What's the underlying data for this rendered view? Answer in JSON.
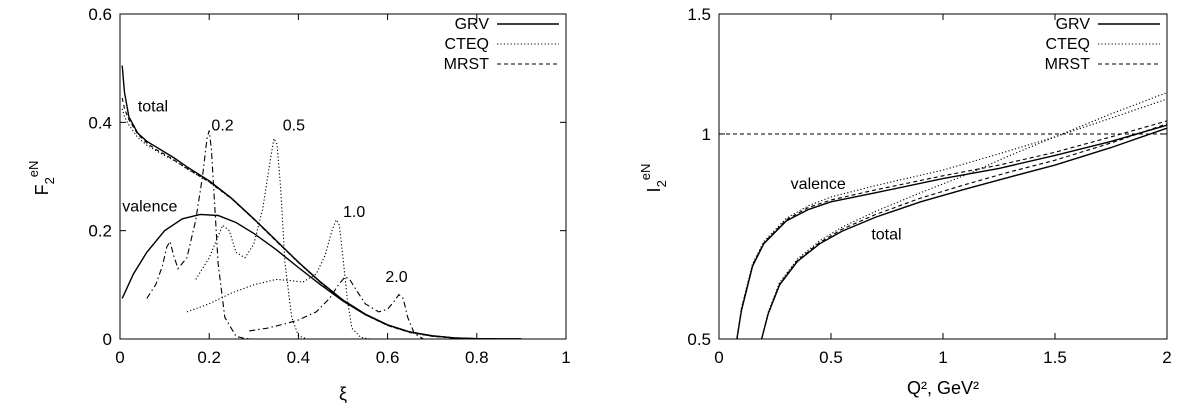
{
  "chart_data": [
    {
      "type": "line",
      "xlabel": "ξ",
      "ylabel": {
        "base": "F",
        "sub": "2",
        "sup": "eN"
      },
      "xlim": [
        0,
        1
      ],
      "ylim": [
        0,
        0.6
      ],
      "xticks": [
        "0",
        "0.2",
        "0.4",
        "0.6",
        "0.8",
        "1"
      ],
      "yticks": [
        "0",
        "0.2",
        "0.4",
        "0.6"
      ],
      "legend": {
        "position": "top-right",
        "entries": [
          "GRV",
          "CTEQ",
          "MRST"
        ]
      },
      "annotations": [
        {
          "text": "total",
          "x": 0.04,
          "y": 0.42
        },
        {
          "text": "valence",
          "x": 0.005,
          "y": 0.235
        },
        {
          "text": "0.2",
          "x": 0.205,
          "y": 0.385
        },
        {
          "text": "0.5",
          "x": 0.365,
          "y": 0.385
        },
        {
          "text": "1.0",
          "x": 0.5,
          "y": 0.225
        },
        {
          "text": "2.0",
          "x": 0.595,
          "y": 0.105
        }
      ],
      "series": [
        {
          "name": "GRV",
          "style": "solid",
          "x": [
            0.005,
            0.01,
            0.02,
            0.04,
            0.06,
            0.08,
            0.1,
            0.12,
            0.15,
            0.2,
            0.25,
            0.3,
            0.35,
            0.4,
            0.45,
            0.5,
            0.55,
            0.6,
            0.65,
            0.7,
            0.75,
            0.8,
            0.85,
            0.9
          ],
          "y": [
            0.505,
            0.455,
            0.41,
            0.38,
            0.365,
            0.355,
            0.345,
            0.335,
            0.318,
            0.292,
            0.26,
            0.222,
            0.182,
            0.142,
            0.105,
            0.072,
            0.046,
            0.026,
            0.013,
            0.006,
            0.002,
            0.0005,
            0.0001,
            0.0
          ]
        },
        {
          "name": "CTEQ",
          "style": "dotted",
          "x": [
            0.005,
            0.01,
            0.02,
            0.04,
            0.06,
            0.08,
            0.1,
            0.12,
            0.15,
            0.2,
            0.25,
            0.3,
            0.35,
            0.4,
            0.45,
            0.5,
            0.55,
            0.6,
            0.65,
            0.7,
            0.75,
            0.8,
            0.85,
            0.9
          ],
          "y": [
            0.425,
            0.41,
            0.395,
            0.372,
            0.358,
            0.348,
            0.339,
            0.33,
            0.314,
            0.29,
            0.259,
            0.221,
            0.181,
            0.141,
            0.104,
            0.071,
            0.045,
            0.025,
            0.012,
            0.005,
            0.002,
            0.0005,
            0.0001,
            0.0
          ]
        },
        {
          "name": "MRST",
          "style": "dashed",
          "x": [
            0.005,
            0.01,
            0.02,
            0.04,
            0.06,
            0.08,
            0.1,
            0.12,
            0.15,
            0.2,
            0.25,
            0.3,
            0.35,
            0.4,
            0.45,
            0.5,
            0.55,
            0.6,
            0.65,
            0.7,
            0.75,
            0.8,
            0.85,
            0.9
          ],
          "y": [
            0.445,
            0.425,
            0.405,
            0.378,
            0.362,
            0.35,
            0.341,
            0.331,
            0.315,
            0.29,
            0.259,
            0.221,
            0.181,
            0.141,
            0.104,
            0.071,
            0.045,
            0.025,
            0.012,
            0.005,
            0.002,
            0.0005,
            0.0001,
            0.0
          ]
        },
        {
          "name": "",
          "style": "solid",
          "x": [
            0.005,
            0.03,
            0.06,
            0.1,
            0.14,
            0.18,
            0.22,
            0.26,
            0.3,
            0.35,
            0.4,
            0.45,
            0.5,
            0.55,
            0.6,
            0.65,
            0.7,
            0.75,
            0.8,
            0.85,
            0.9
          ],
          "y": [
            0.075,
            0.12,
            0.16,
            0.2,
            0.222,
            0.23,
            0.228,
            0.215,
            0.195,
            0.165,
            0.132,
            0.1,
            0.07,
            0.045,
            0.026,
            0.013,
            0.006,
            0.002,
            0.0005,
            0.0001,
            0.0
          ]
        },
        {
          "name": "",
          "style": "dashdot",
          "x": [
            0.06,
            0.08,
            0.095,
            0.105,
            0.112,
            0.12,
            0.13,
            0.15,
            0.17,
            0.185,
            0.195,
            0.2,
            0.205,
            0.212,
            0.22,
            0.235,
            0.26,
            0.28,
            0.3
          ],
          "y": [
            0.075,
            0.1,
            0.135,
            0.17,
            0.18,
            0.155,
            0.13,
            0.15,
            0.22,
            0.3,
            0.37,
            0.385,
            0.35,
            0.25,
            0.14,
            0.04,
            0.005,
            0.001,
            0.0
          ]
        },
        {
          "name": "",
          "style": "dotted",
          "x": [
            0.17,
            0.2,
            0.215,
            0.23,
            0.245,
            0.26,
            0.28,
            0.3,
            0.32,
            0.335,
            0.345,
            0.352,
            0.36,
            0.37,
            0.385,
            0.4,
            0.42
          ],
          "y": [
            0.11,
            0.15,
            0.18,
            0.21,
            0.2,
            0.16,
            0.15,
            0.175,
            0.24,
            0.32,
            0.37,
            0.36,
            0.28,
            0.14,
            0.04,
            0.006,
            0.0
          ]
        },
        {
          "name": "",
          "style": "dotted",
          "x": [
            0.15,
            0.2,
            0.25,
            0.3,
            0.35,
            0.38,
            0.41,
            0.44,
            0.46,
            0.475,
            0.485,
            0.492,
            0.5,
            0.51,
            0.52,
            0.54,
            0.56
          ],
          "y": [
            0.05,
            0.065,
            0.085,
            0.1,
            0.11,
            0.108,
            0.105,
            0.12,
            0.155,
            0.2,
            0.22,
            0.21,
            0.15,
            0.07,
            0.02,
            0.003,
            0.0
          ]
        },
        {
          "name": "",
          "style": "dashdot",
          "x": [
            0.29,
            0.33,
            0.37,
            0.4,
            0.44,
            0.47,
            0.49,
            0.505,
            0.515,
            0.53,
            0.55,
            0.58,
            0.6,
            0.615,
            0.625,
            0.635,
            0.645,
            0.66,
            0.68
          ],
          "y": [
            0.015,
            0.02,
            0.028,
            0.035,
            0.05,
            0.075,
            0.1,
            0.115,
            0.11,
            0.09,
            0.065,
            0.05,
            0.055,
            0.07,
            0.082,
            0.075,
            0.04,
            0.01,
            0.0
          ]
        }
      ]
    },
    {
      "type": "line",
      "xlabel": "Q², GeV²",
      "ylabel": {
        "base": "I",
        "sub": "2",
        "sup": "eN"
      },
      "xlim": [
        0,
        2
      ],
      "ylim": [
        0.5,
        1.5
      ],
      "yscale": "log",
      "xticks": [
        "0",
        "0.5",
        "1",
        "1.5",
        "2"
      ],
      "yticks": [
        "0.5",
        "1",
        "1.5"
      ],
      "legend": {
        "position": "top-right",
        "entries": [
          "GRV",
          "CTEQ",
          "MRST"
        ]
      },
      "annotations": [
        {
          "text": "valence",
          "x": 0.32,
          "y": 0.83
        },
        {
          "text": "total",
          "x": 0.68,
          "y": 0.7
        }
      ],
      "reference_line": {
        "y": 1.0,
        "style": "dashed"
      },
      "series": [
        {
          "name": "GRV",
          "style": "solid",
          "x": [
            0.08,
            0.1,
            0.15,
            0.2,
            0.3,
            0.4,
            0.5,
            0.7,
            1.0,
            1.25,
            1.5,
            1.75,
            2.0
          ],
          "y": [
            0.5,
            0.55,
            0.64,
            0.69,
            0.745,
            0.775,
            0.795,
            0.82,
            0.86,
            0.89,
            0.93,
            0.975,
            1.03
          ]
        },
        {
          "name": "CTEQ",
          "style": "dotted",
          "x": [
            0.08,
            0.1,
            0.15,
            0.2,
            0.3,
            0.4,
            0.5,
            0.7,
            1.0,
            1.25,
            1.5,
            1.75,
            2.0
          ],
          "y": [
            0.5,
            0.555,
            0.645,
            0.695,
            0.752,
            0.785,
            0.808,
            0.84,
            0.885,
            0.935,
            0.99,
            1.055,
            1.125
          ]
        },
        {
          "name": "MRST",
          "style": "dashed",
          "x": [
            0.08,
            0.1,
            0.15,
            0.2,
            0.3,
            0.4,
            0.5,
            0.7,
            1.0,
            1.25,
            1.5,
            1.75,
            2.0
          ],
          "y": [
            0.5,
            0.553,
            0.642,
            0.692,
            0.748,
            0.78,
            0.8,
            0.828,
            0.868,
            0.9,
            0.94,
            0.99,
            1.045
          ]
        },
        {
          "name": "",
          "style": "solid",
          "x": [
            0.19,
            0.22,
            0.27,
            0.35,
            0.45,
            0.55,
            0.7,
            0.9,
            1.1,
            1.3,
            1.5,
            1.75,
            2.0
          ],
          "y": [
            0.5,
            0.545,
            0.6,
            0.65,
            0.69,
            0.72,
            0.755,
            0.795,
            0.83,
            0.865,
            0.9,
            0.955,
            1.02
          ]
        },
        {
          "name": "",
          "style": "dotted",
          "x": [
            0.19,
            0.22,
            0.27,
            0.35,
            0.45,
            0.55,
            0.7,
            0.9,
            1.1,
            1.3,
            1.5,
            1.75,
            2.0
          ],
          "y": [
            0.5,
            0.548,
            0.605,
            0.655,
            0.697,
            0.73,
            0.77,
            0.82,
            0.87,
            0.93,
            0.99,
            1.07,
            1.15
          ]
        },
        {
          "name": "",
          "style": "dashed",
          "x": [
            0.19,
            0.22,
            0.27,
            0.35,
            0.45,
            0.55,
            0.7,
            0.9,
            1.1,
            1.3,
            1.5,
            1.75,
            2.0
          ],
          "y": [
            0.5,
            0.546,
            0.602,
            0.652,
            0.693,
            0.725,
            0.762,
            0.805,
            0.843,
            0.88,
            0.915,
            0.97,
            1.035
          ]
        }
      ]
    }
  ]
}
